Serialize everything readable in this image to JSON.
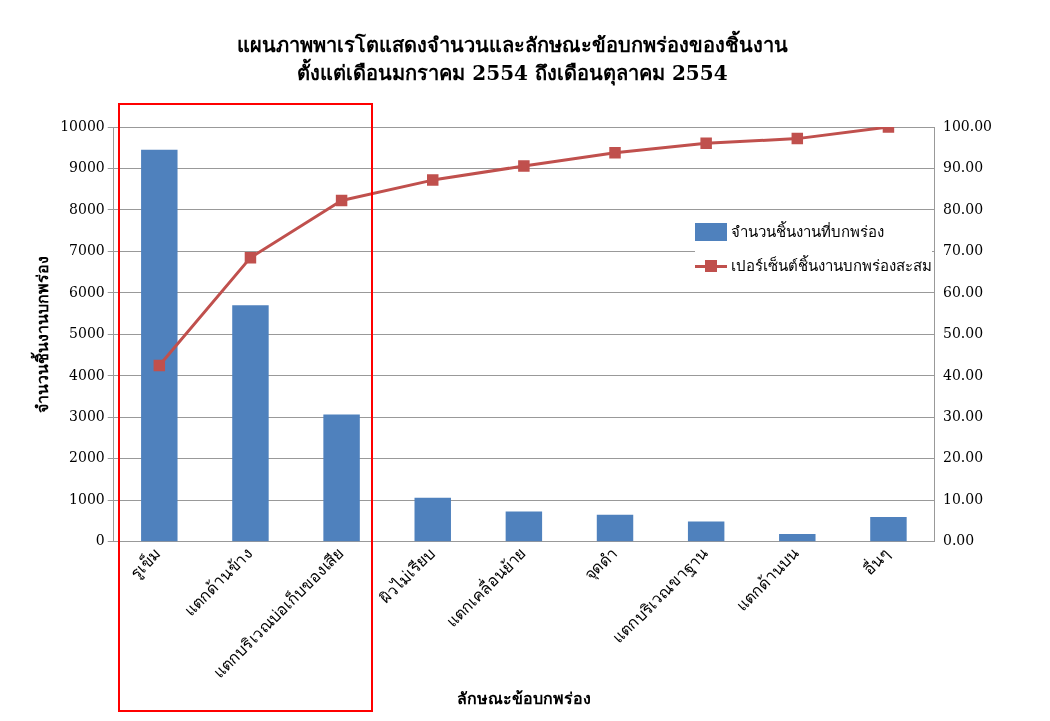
{
  "chart_data": {
    "type": "bar",
    "title": "แผนภาพพาเรโตแสดงจำนวนและลักษณะข้อบกพร่องของชิ้นงาน",
    "subtitle": "ตั้งแต่เดือนมกราคม 2554 ถึงเดือนตุลาคม 2554",
    "xlabel": "ลักษณะข้อบกพร่อง",
    "ylabel": "จำนวนชิ้นงานบกพร่อง",
    "categories": [
      "รูเข็ม",
      "แตกด้านข้าง",
      "แตกบริเวณบ่อเก็บของเสีย",
      "ผิวไม่เรียบ",
      "แตกเคลื่อนย้าย",
      "จุดดำ",
      "แตกบริเวณขาฐาน",
      "แตกด้านบน",
      "อื่นๆ"
    ],
    "series": [
      {
        "name": "จำนวนชิ้นงานที่บกพร่อง",
        "color": "#4f81bd",
        "values": [
          9450,
          5700,
          3070,
          1060,
          730,
          650,
          490,
          190,
          600
        ]
      },
      {
        "name": "เปอร์เซ็นต์ชิ้นงานบกพร่องสะสม",
        "type": "line",
        "axis": "y2",
        "color": "#c0504d",
        "values": [
          42.5,
          68.5,
          82.3,
          87.2,
          90.6,
          93.8,
          96.1,
          97.2,
          100
        ]
      }
    ],
    "ylim": [
      0,
      10000
    ],
    "yticks": [
      0,
      1000,
      2000,
      3000,
      4000,
      5000,
      6000,
      7000,
      8000,
      9000,
      10000
    ],
    "y2lim": [
      0,
      100
    ],
    "y2ticks": [
      {
        "value": 0,
        "label": "0.00"
      },
      {
        "value": 10,
        "label": "10.00"
      },
      {
        "value": 20,
        "label": "20.00"
      },
      {
        "value": 30,
        "label": "30.00"
      },
      {
        "value": 40,
        "label": "40.00"
      },
      {
        "value": 50,
        "label": "50.00"
      },
      {
        "value": 60,
        "label": "60.00"
      },
      {
        "value": 70,
        "label": "70.00"
      },
      {
        "value": 80,
        "label": "80.00"
      },
      {
        "value": 90,
        "label": "90.00"
      },
      {
        "value": 100,
        "label": "100.00"
      }
    ],
    "grid": "y",
    "legend": "right",
    "marker": "square",
    "line_style": "solid"
  }
}
